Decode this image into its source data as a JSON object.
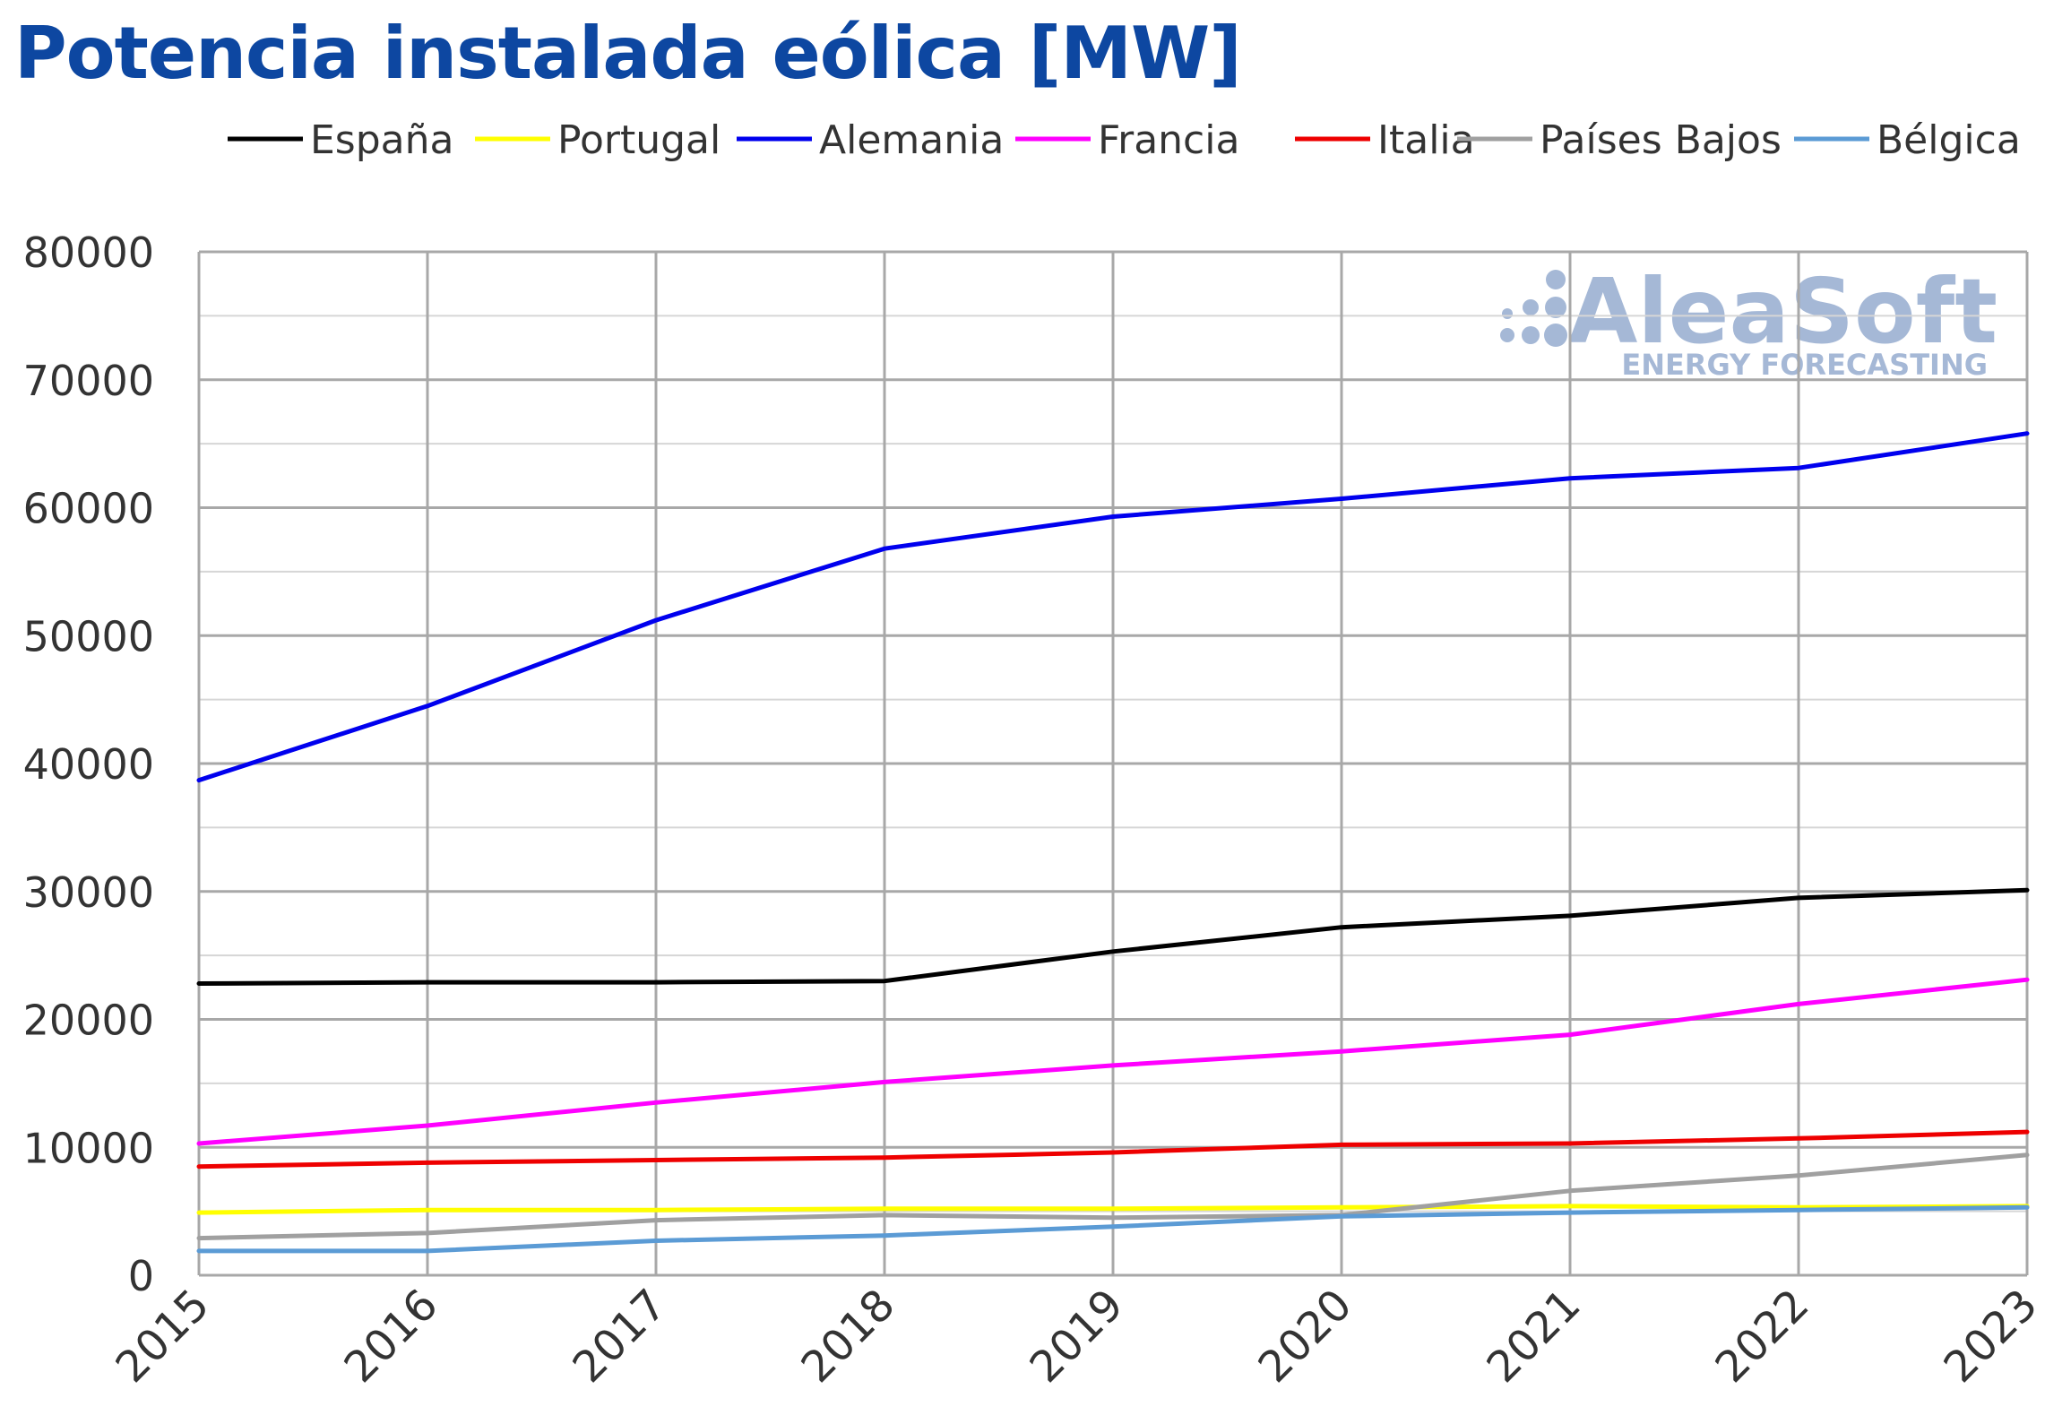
{
  "title": "Potencia instalada eólica [MW]",
  "watermark": {
    "brand": "AleaSoft",
    "tagline": "ENERGY FORECASTING",
    "color": "#a5b8d6"
  },
  "chart_data": {
    "type": "line",
    "title": "Potencia instalada eólica [MW]",
    "xlabel": "",
    "ylabel": "",
    "ylim": [
      0,
      80000
    ],
    "y_major_step": 10000,
    "y_minor_step": 5000,
    "grid": true,
    "legend_position": "top",
    "categories": [
      "2015",
      "2016",
      "2017",
      "2018",
      "2019",
      "2020",
      "2021",
      "2022",
      "2023"
    ],
    "y_ticks": [
      "0",
      "10000",
      "20000",
      "30000",
      "40000",
      "50000",
      "60000",
      "70000",
      "80000"
    ],
    "series": [
      {
        "name": "España",
        "color": "#000000",
        "values": [
          22800,
          22900,
          22900,
          23000,
          25300,
          27200,
          28100,
          29500,
          30100
        ]
      },
      {
        "name": "Portugal",
        "color": "#ffff00",
        "values": [
          4900,
          5100,
          5100,
          5200,
          5200,
          5300,
          5400,
          5300,
          5400
        ]
      },
      {
        "name": "Alemania",
        "color": "#0000ee",
        "values": [
          38700,
          44500,
          51200,
          56800,
          59300,
          60700,
          62300,
          63100,
          65800
        ]
      },
      {
        "name": "Francia",
        "color": "#ff00ff",
        "values": [
          10300,
          11700,
          13500,
          15100,
          16400,
          17500,
          18800,
          21200,
          23100
        ]
      },
      {
        "name": "Italia",
        "color": "#ee0000",
        "values": [
          8500,
          8800,
          9000,
          9200,
          9600,
          10200,
          10300,
          10700,
          11200
        ]
      },
      {
        "name": "Países Bajos",
        "color": "#a0a0a0",
        "values": [
          2900,
          3300,
          4300,
          4700,
          4500,
          4700,
          6600,
          7800,
          9400
        ]
      },
      {
        "name": "Bélgica",
        "color": "#5b9bd5",
        "values": [
          1900,
          1900,
          2700,
          3100,
          3800,
          4600,
          4900,
          5100,
          5300
        ]
      }
    ]
  }
}
